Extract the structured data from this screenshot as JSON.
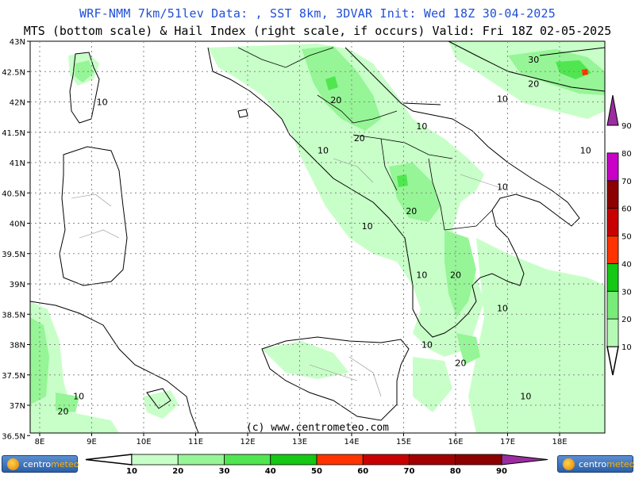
{
  "header": {
    "line1": "WRF-NMM 7km/51lev  Data: , SST 8km, 3DVAR   Init: Wed 18Z 30-04-2025",
    "line2": "MTS (bottom scale) & Hail Index (right scale, if occurs) Valid: Fri 18Z 02-05-2025"
  },
  "axes": {
    "lat_labels": [
      "43N",
      "42.5N",
      "42N",
      "41.5N",
      "41N",
      "40.5N",
      "40N",
      "39.5N",
      "39N",
      "38.5N",
      "38N",
      "37.5N",
      "37N",
      "36.5N"
    ],
    "lon_labels": [
      "8E",
      "9E",
      "10E",
      "11E",
      "12E",
      "13E",
      "14E",
      "15E",
      "16E",
      "17E",
      "18E"
    ],
    "lat_values": [
      43,
      42.5,
      42,
      41.5,
      41,
      40.5,
      40,
      39.5,
      39,
      38.5,
      38,
      37.5,
      37,
      36.5
    ],
    "lon_values": [
      8,
      9,
      10,
      11,
      12,
      13,
      14,
      15,
      16,
      17,
      18
    ]
  },
  "contour_labels": [
    {
      "text": "10",
      "lon": 9.2,
      "lat": 41.95
    },
    {
      "text": "20",
      "lon": 13.7,
      "lat": 41.98
    },
    {
      "text": "20",
      "lon": 14.15,
      "lat": 41.35
    },
    {
      "text": "10",
      "lon": 13.45,
      "lat": 41.15
    },
    {
      "text": "10",
      "lon": 15.35,
      "lat": 41.55
    },
    {
      "text": "30",
      "lon": 17.5,
      "lat": 42.65
    },
    {
      "text": "20",
      "lon": 17.5,
      "lat": 42.25
    },
    {
      "text": "10",
      "lon": 16.9,
      "lat": 42.0
    },
    {
      "text": "10",
      "lon": 18.5,
      "lat": 41.15
    },
    {
      "text": "10",
      "lon": 16.9,
      "lat": 40.55
    },
    {
      "text": "20",
      "lon": 15.15,
      "lat": 40.15
    },
    {
      "text": "10",
      "lon": 14.3,
      "lat": 39.9
    },
    {
      "text": "10",
      "lon": 15.35,
      "lat": 39.1
    },
    {
      "text": "20",
      "lon": 16.0,
      "lat": 39.1
    },
    {
      "text": "10",
      "lon": 16.9,
      "lat": 38.55
    },
    {
      "text": "10",
      "lon": 15.45,
      "lat": 37.95
    },
    {
      "text": "20",
      "lon": 16.1,
      "lat": 37.65
    },
    {
      "text": "10",
      "lon": 17.35,
      "lat": 37.1
    },
    {
      "text": "10",
      "lon": 8.75,
      "lat": 37.1
    },
    {
      "text": "20",
      "lon": 8.45,
      "lat": 36.85
    }
  ],
  "bottom_scale": {
    "labels": [
      "10",
      "20",
      "30",
      "40",
      "50",
      "60",
      "70",
      "80",
      "90"
    ],
    "colors": [
      "#c8ffc8",
      "#96f596",
      "#50e650",
      "#14c814",
      "#ff3200",
      "#c80000",
      "#a00000",
      "#8c0000",
      "#c800c8"
    ]
  },
  "right_scale": {
    "labels": [
      "10",
      "20",
      "30",
      "40",
      "50",
      "60",
      "70",
      "80",
      "90"
    ],
    "colors": [
      "#ffffff",
      "#b4fab4",
      "#78eb78",
      "#14c814",
      "#ff3200",
      "#c80000",
      "#8c0000",
      "#c800c8",
      "#9b2da0"
    ]
  },
  "colors": {
    "title_blue": "#1f4fd6",
    "light_green": "#c8ffc8",
    "mid_green": "#96f596"
  },
  "footer": {
    "copyright": "(c) www.centrometeo.com"
  },
  "logos": {
    "left_text_a": "centro",
    "left_text_b": "meteo",
    "right_text_a": "centro",
    "right_text_b": "meteo"
  }
}
